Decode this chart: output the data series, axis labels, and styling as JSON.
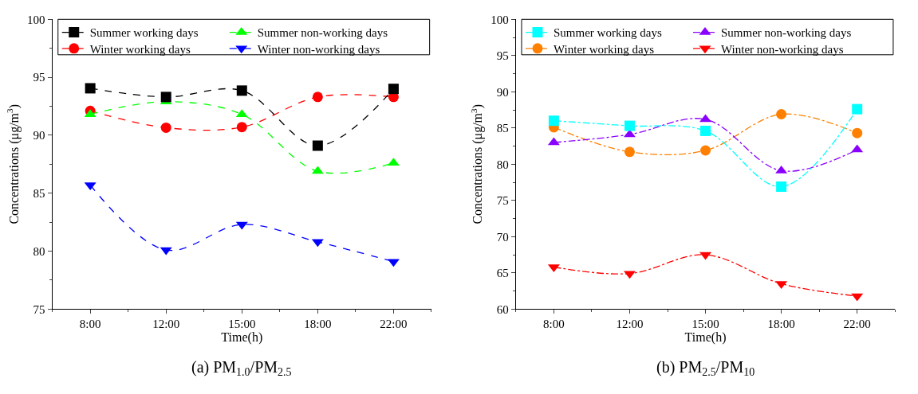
{
  "chart_data": [
    {
      "type": "line",
      "title": "(a) PM$_{1.0}$/PM$_{2.5}$",
      "xlabel": "Time(h)",
      "ylabel": "Concentrations (μg/m$^{3}$)",
      "categories": [
        "8:00",
        "12:00",
        "15:00",
        "18:00",
        "22:00"
      ],
      "ylim": [
        75,
        100
      ],
      "yticks": [
        75,
        80,
        85,
        90,
        95,
        100
      ],
      "legend": "top",
      "line_style": "dashed",
      "series": [
        {
          "name": "Summer working days",
          "color": "#000000",
          "marker": "square",
          "values": [
            94.05,
            93.3,
            93.85,
            89.1,
            94.0
          ]
        },
        {
          "name": "Summer non-working days",
          "color": "#00ff00",
          "marker": "triangle",
          "values": [
            91.8,
            92.9,
            91.8,
            86.9,
            87.6
          ]
        },
        {
          "name": "Winter working days",
          "color": "#ff0000",
          "marker": "circle",
          "values": [
            92.1,
            90.65,
            90.7,
            93.3,
            93.3
          ]
        },
        {
          "name": "Winter non-working days",
          "color": "#0000ff",
          "marker": "triangle-down",
          "values": [
            85.7,
            80.1,
            82.3,
            80.8,
            79.1
          ]
        }
      ]
    },
    {
      "type": "line",
      "title": "(b) PM$_{2.5}$/PM$_{10}$",
      "xlabel": "Time(h)",
      "ylabel": "Concentrations (μg/m$^{3}$)",
      "categories": [
        "8:00",
        "12:00",
        "15:00",
        "18:00",
        "22:00"
      ],
      "ylim": [
        60,
        100
      ],
      "yticks": [
        60,
        65,
        70,
        75,
        80,
        85,
        90,
        95,
        100
      ],
      "legend": "top",
      "line_style": "dashdot",
      "series": [
        {
          "name": "Summer working days",
          "color": "#00ffff",
          "marker": "square",
          "values": [
            86.0,
            85.3,
            84.6,
            76.9,
            87.6
          ]
        },
        {
          "name": "Summer non-working days",
          "color": "#8a00ff",
          "marker": "triangle",
          "values": [
            83.0,
            84.1,
            86.2,
            79.1,
            82.0
          ]
        },
        {
          "name": "Winter working days",
          "color": "#ff8000",
          "marker": "circle",
          "values": [
            85.1,
            81.7,
            81.9,
            86.9,
            84.3
          ]
        },
        {
          "name": "Winter non-working days",
          "color": "#ff0000",
          "marker": "triangle-down",
          "values": [
            65.8,
            64.9,
            67.5,
            63.5,
            61.8
          ]
        }
      ]
    }
  ]
}
